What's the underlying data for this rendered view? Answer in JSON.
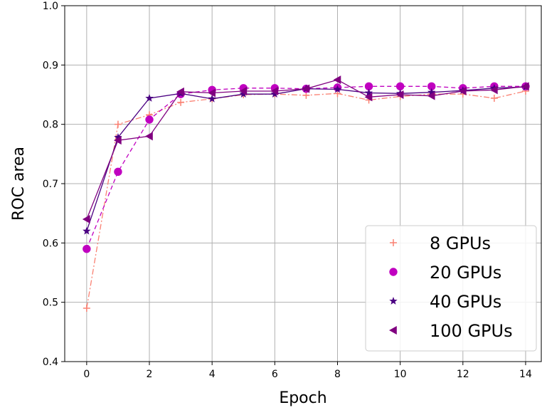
{
  "chart_data": {
    "type": "line",
    "title": "",
    "xlabel": "Epoch",
    "ylabel": "ROC area",
    "xlim": [
      -0.7,
      14.5
    ],
    "ylim": [
      0.4,
      1.0
    ],
    "xticks": [
      0,
      2,
      4,
      6,
      8,
      10,
      12,
      14
    ],
    "yticks": [
      0.4,
      0.5,
      0.6,
      0.7,
      0.8,
      0.9,
      1.0
    ],
    "grid": true,
    "legend_position": "lower right",
    "x": [
      0,
      1,
      2,
      3,
      4,
      5,
      6,
      7,
      8,
      9,
      10,
      11,
      12,
      13,
      14
    ],
    "series": [
      {
        "name": "8 GPUs",
        "color": "#fa8072",
        "marker": "plus",
        "linestyle": "dashdot",
        "values": [
          0.49,
          0.8,
          0.816,
          0.837,
          0.843,
          0.85,
          0.851,
          0.849,
          0.852,
          0.841,
          0.847,
          0.851,
          0.851,
          0.844,
          0.856
        ]
      },
      {
        "name": "20 GPUs",
        "color": "#c000c0",
        "marker": "circle",
        "linestyle": "dashed",
        "values": [
          0.59,
          0.72,
          0.808,
          0.851,
          0.858,
          0.861,
          0.861,
          0.86,
          0.862,
          0.864,
          0.864,
          0.864,
          0.861,
          0.864,
          0.864
        ]
      },
      {
        "name": "40 GPUs",
        "color": "#4b0082",
        "marker": "star",
        "linestyle": "solid",
        "values": [
          0.62,
          0.778,
          0.844,
          0.852,
          0.843,
          0.851,
          0.851,
          0.86,
          0.859,
          0.853,
          0.852,
          0.854,
          0.857,
          0.861,
          0.863
        ]
      },
      {
        "name": "100 GPUs",
        "color": "#800080",
        "marker": "triangle-left",
        "linestyle": "solid",
        "values": [
          0.64,
          0.773,
          0.78,
          0.855,
          0.853,
          0.856,
          0.856,
          0.86,
          0.875,
          0.846,
          0.85,
          0.848,
          0.856,
          0.858,
          0.864
        ]
      }
    ]
  }
}
